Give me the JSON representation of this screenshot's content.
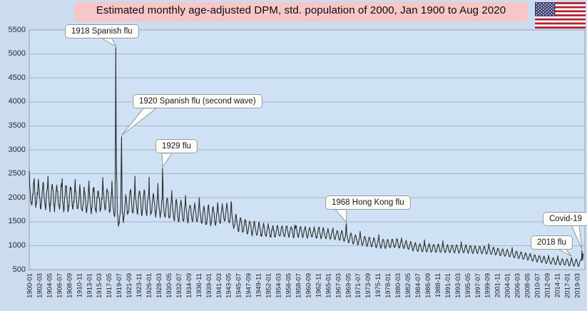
{
  "header": {
    "title": "Estimated monthly age-adjusted DPM, std. population of 2000, Jan 1900 to Aug 2020"
  },
  "flag": {
    "name": "us-flag",
    "red": "#b22234",
    "blue": "#3c3b6e",
    "white": "#ffffff"
  },
  "colors": {
    "page_bg": "#ccdcee",
    "plot_bg": "#cfe2f5",
    "grid": "#a9b3bf",
    "axis": "#96a1ad",
    "line": "#2d2d2d",
    "title_bg": "#f6c6c8",
    "callout_bg": "#fbfbf8",
    "callout_border": "#8f969e",
    "tick_text": "#222222"
  },
  "chart_data": {
    "type": "line",
    "title": "Estimated monthly age-adjusted DPM, std. population of 2000, Jan 1900 to Aug 2020",
    "xlabel": "",
    "ylabel": "",
    "x_start": "1900-01",
    "x_end": "2020-08",
    "x_tick_interval_months": 26,
    "x_tick_labels": [
      "1900-01",
      "1902-03",
      "1904-05",
      "1906-07",
      "1908-09",
      "1910-11",
      "1913-01",
      "1915-03",
      "1917-05",
      "1919-07",
      "1921-09",
      "1923-11",
      "1926-01",
      "1928-03",
      "1930-05",
      "1932-07",
      "1934-09",
      "1936-11",
      "1939-01",
      "1941-03",
      "1943-05",
      "1945-07",
      "1947-09",
      "1949-11",
      "1952-01",
      "1954-03",
      "1956-05",
      "1958-07",
      "1960-09",
      "1962-11",
      "1965-01",
      "1967-03",
      "1969-05",
      "1971-07",
      "1973-09",
      "1975-11",
      "1978-01",
      "1980-03",
      "1982-05",
      "1984-07",
      "1986-09",
      "1988-11",
      "1991-01",
      "1993-03",
      "1995-05",
      "1997-07",
      "1999-09",
      "2001-11",
      "2004-01",
      "2006-03",
      "2008-05",
      "2010-07",
      "2012-09",
      "2014-11",
      "2017-01",
      "2019-03"
    ],
    "y_ticks": [
      500,
      1000,
      1500,
      2000,
      2500,
      3000,
      3500,
      4000,
      4500,
      5000,
      5500
    ],
    "ylim": [
      500,
      5500
    ],
    "grid": "horizontal",
    "legend": "none",
    "annotations": [
      {
        "label": "1918 Spanish flu",
        "target": "1918-11",
        "value": 5130
      },
      {
        "label": "1920 Spanish flu (second wave)",
        "target": "1920-02",
        "value": 3270
      },
      {
        "label": "1929 flu",
        "target": "1929-01",
        "value": 2610
      },
      {
        "label": "1968 Hong Kong flu",
        "target": "1969-01",
        "value": 1460
      },
      {
        "label": "2018 flu",
        "target": "2018-01",
        "value": 750
      },
      {
        "label": "Covid-19",
        "target": "2020-04",
        "value": 900
      }
    ],
    "series_model": {
      "description": "Monthly series Jan 1900 - Aug 2020: value = baseline(t) + amplitude(t)*seasonal(month) + noise(t)*jitter(i); named epidemic months overridden by spikes.",
      "baseline_anchors": [
        [
          1900,
          2080
        ],
        [
          1903,
          2040
        ],
        [
          1906,
          2020
        ],
        [
          1909,
          1990
        ],
        [
          1912,
          1960
        ],
        [
          1915,
          1950
        ],
        [
          1917.7,
          1980
        ],
        [
          1919.2,
          1620
        ],
        [
          1920.5,
          1760
        ],
        [
          1922,
          1950
        ],
        [
          1925,
          1900
        ],
        [
          1928,
          1850
        ],
        [
          1931,
          1760
        ],
        [
          1934,
          1700
        ],
        [
          1937,
          1660
        ],
        [
          1940,
          1620
        ],
        [
          1943,
          1680
        ],
        [
          1945,
          1480
        ],
        [
          1947,
          1400
        ],
        [
          1950,
          1340
        ],
        [
          1953,
          1300
        ],
        [
          1956,
          1300
        ],
        [
          1960,
          1280
        ],
        [
          1964,
          1260
        ],
        [
          1968,
          1210
        ],
        [
          1971,
          1130
        ],
        [
          1974,
          1080
        ],
        [
          1977,
          1045
        ],
        [
          1980,
          1050
        ],
        [
          1985,
          960
        ],
        [
          1990,
          940
        ],
        [
          1995,
          930
        ],
        [
          2000,
          900
        ],
        [
          2003,
          860
        ],
        [
          2005,
          830
        ],
        [
          2008,
          780
        ],
        [
          2010,
          740
        ],
        [
          2013,
          690
        ],
        [
          2016,
          660
        ],
        [
          2020,
          640
        ]
      ],
      "amplitude_anchors": [
        [
          1900,
          260
        ],
        [
          1910,
          245
        ],
        [
          1918,
          230
        ],
        [
          1925,
          255
        ],
        [
          1935,
          195
        ],
        [
          1943,
          180
        ],
        [
          1950,
          128
        ],
        [
          1960,
          108
        ],
        [
          1970,
          102
        ],
        [
          1980,
          92
        ],
        [
          1990,
          85
        ],
        [
          2000,
          80
        ],
        [
          2010,
          72
        ],
        [
          2020,
          70
        ]
      ],
      "noise_anchors": [
        [
          1900,
          85
        ],
        [
          1915,
          75
        ],
        [
          1925,
          60
        ],
        [
          1940,
          40
        ],
        [
          1955,
          25
        ],
        [
          1970,
          15
        ],
        [
          1985,
          10
        ],
        [
          2020,
          8
        ]
      ],
      "spikes": {
        "1900-01": 2560,
        "1900-02": 2320,
        "1901-02": 2400,
        "1904-02": 2450,
        "1907-03": 2400,
        "1910-01": 2380,
        "1913-01": 2350,
        "1916-01": 2420,
        "1918-01": 2350,
        "1918-10": 3300,
        "1918-11": 5130,
        "1918-12": 3200,
        "1919-01": 2500,
        "1919-02": 2200,
        "1920-01": 2650,
        "1920-02": 3270,
        "1920-03": 2350,
        "1923-01": 2450,
        "1926-02": 2430,
        "1928-01": 2300,
        "1929-01": 2610,
        "1929-02": 2350,
        "1931-01": 2150,
        "1934-01": 2050,
        "1937-01": 2000,
        "1941-01": 1900,
        "1943-12": 1920,
        "1944-01": 1880,
        "1957-10": 1430,
        "1958-02": 1420,
        "1960-02": 1400,
        "1963-02": 1390,
        "1966-02": 1370,
        "1968-12": 1410,
        "1969-01": 1460,
        "1972-01": 1300,
        "1976-02": 1230,
        "1981-01": 1160,
        "1986-01": 1120,
        "1990-01": 1100,
        "1994-01": 1080,
        "2000-01": 1040,
        "2005-02": 960,
        "2013-01": 800,
        "2015-01": 790,
        "2018-01": 750,
        "2020-03": 700,
        "2020-04": 900,
        "2020-05": 760,
        "2020-06": 700,
        "2020-07": 810,
        "2020-08": 840
      }
    }
  }
}
